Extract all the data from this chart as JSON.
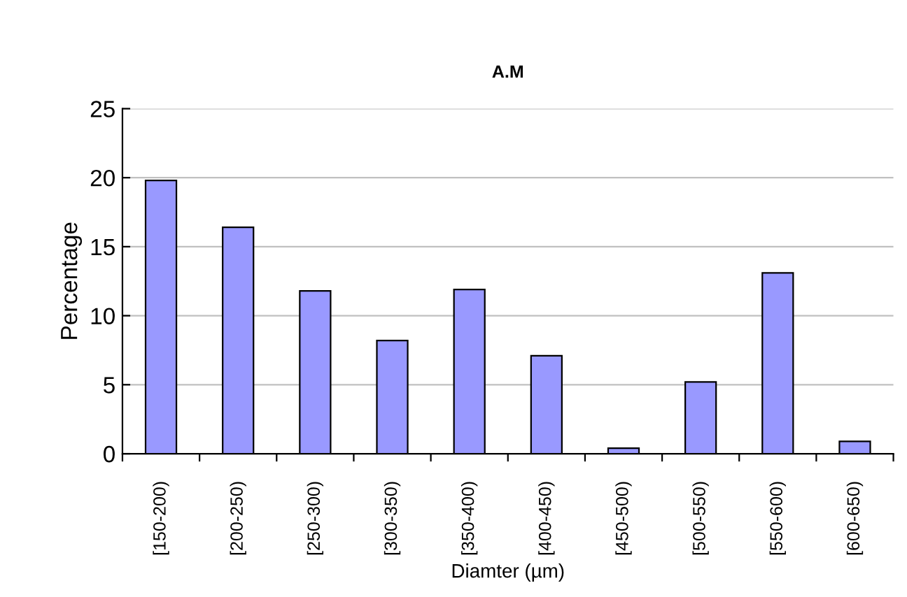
{
  "chart_data": {
    "type": "bar",
    "title": "A.M",
    "xlabel": "Diamter (µm)",
    "ylabel": "Percentage",
    "categories": [
      "[150-200)",
      "[200-250)",
      "[250-300)",
      "[300-350)",
      "[350-400)",
      "[400-450)",
      "[450-500)",
      "[500-550)",
      "[550-600)",
      "[600-650)"
    ],
    "values": [
      19.8,
      16.4,
      11.8,
      8.2,
      11.9,
      7.1,
      0.4,
      5.2,
      13.1,
      0.9
    ],
    "color": "#9999ff",
    "ylim": [
      0,
      25
    ],
    "yticks": [
      0,
      5,
      10,
      15,
      20,
      25
    ],
    "grid": "y",
    "legend": false
  }
}
